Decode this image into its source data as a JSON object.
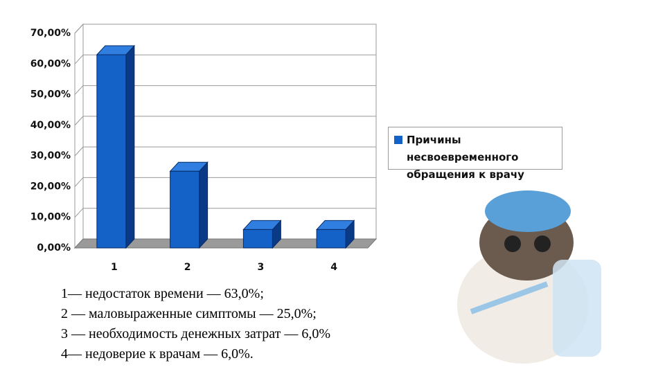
{
  "chart_data": {
    "type": "bar3d",
    "categories": [
      "1",
      "2",
      "3",
      "4"
    ],
    "series": [
      {
        "name": "Причины несвоевременного обращения к врачу",
        "color": "#1462c8",
        "values": [
          63,
          25,
          6,
          6
        ]
      }
    ],
    "ylim": [
      0,
      70
    ],
    "yticks": [
      {
        "value": 0,
        "label": "0,00%"
      },
      {
        "value": 10,
        "label": "10,00%"
      },
      {
        "value": 20,
        "label": "20,00%"
      },
      {
        "value": 30,
        "label": "30,00%"
      },
      {
        "value": 40,
        "label": "40,00%"
      },
      {
        "value": 50,
        "label": "50,00%"
      },
      {
        "value": 60,
        "label": "60,00%"
      },
      {
        "value": 70,
        "label": "70,00%"
      }
    ],
    "grid": true,
    "legend": "right",
    "notes": [
      "1— недостаток времени — 63,0%;",
      "2 — маловыраженные симптомы — 25,0%;",
      "3 — необходимость денежных затрат — 6,0%",
      "4— недоверие к врачам — 6,0%."
    ]
  }
}
